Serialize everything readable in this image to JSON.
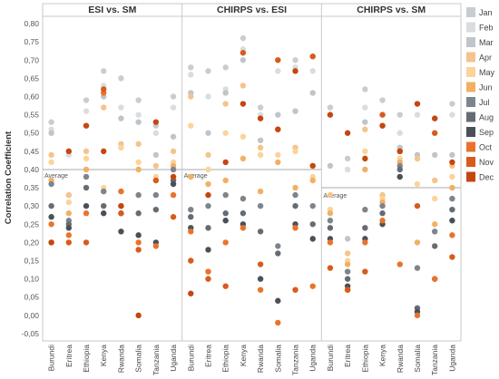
{
  "chart_data": {
    "type": "scatter",
    "ylabel": "Correlation Coefficient",
    "ylim": [
      -0.07,
      0.82
    ],
    "yticks": [
      "0,80",
      "0,75",
      "0,70",
      "0,65",
      "0,60",
      "0,55",
      "0,50",
      "0,45",
      "0,40",
      "0,35",
      "0,30",
      "0,25",
      "0,20",
      "0,15",
      "0,10",
      "0,05",
      "0,00",
      "-0,05"
    ],
    "ytick_values": [
      0.8,
      0.75,
      0.7,
      0.65,
      0.6,
      0.55,
      0.5,
      0.45,
      0.4,
      0.35,
      0.3,
      0.25,
      0.2,
      0.15,
      0.1,
      0.05,
      0.0,
      -0.05
    ],
    "categories": [
      "Burundi",
      "Eritrea",
      "Ethiopia",
      "Kenya",
      "Rwanda",
      "Somalia",
      "Tanzania",
      "Uganda"
    ],
    "average_label": "Average",
    "legend": [
      {
        "name": "Jan",
        "color": "#c8cdd2"
      },
      {
        "name": "Feb",
        "color": "#d9dde0"
      },
      {
        "name": "Mar",
        "color": "#bfc5ca"
      },
      {
        "name": "Apr",
        "color": "#f5c38c"
      },
      {
        "name": "May",
        "color": "#fbd39b"
      },
      {
        "name": "Jun",
        "color": "#f2b063"
      },
      {
        "name": "Jul",
        "color": "#7d858c"
      },
      {
        "name": "Aug",
        "color": "#656c73"
      },
      {
        "name": "Sep",
        "color": "#4a5058"
      },
      {
        "name": "Oct",
        "color": "#e8742c"
      },
      {
        "name": "Nov",
        "color": "#d85b1c"
      },
      {
        "name": "Dec",
        "color": "#c6460f"
      }
    ],
    "panels": [
      {
        "title": "ESI vs. SM",
        "average": 0.4,
        "points": [
          [
            0.53,
            0.51,
            0.5,
            0.44,
            0.42,
            0.37,
            0.36,
            0.3,
            0.27,
            0.25,
            0.2,
            0.2
          ],
          [
            0.45,
            0.44,
            0.33,
            0.33,
            0.31,
            0.28,
            0.26,
            0.25,
            0.24,
            0.22,
            0.2,
            0.45
          ],
          [
            0.59,
            0.56,
            0.52,
            0.45,
            0.43,
            0.4,
            0.38,
            0.35,
            0.3,
            0.28,
            0.2,
            0.52
          ],
          [
            0.67,
            0.63,
            0.6,
            0.57,
            0.35,
            0.34,
            0.34,
            0.3,
            0.28,
            0.61,
            0.62,
            0.45
          ],
          [
            0.65,
            0.57,
            0.54,
            0.47,
            0.46,
            0.34,
            0.3,
            0.28,
            0.23,
            0.34,
            0.28,
            0.3
          ],
          [
            0.59,
            0.55,
            0.53,
            0.47,
            0.42,
            0.4,
            0.33,
            0.28,
            0.22,
            0.2,
            0.18,
            0.0
          ],
          [
            0.52,
            0.5,
            0.44,
            0.41,
            0.38,
            0.37,
            0.33,
            0.29,
            0.2,
            0.19,
            0.37,
            0.53
          ],
          [
            0.6,
            0.57,
            0.49,
            0.45,
            0.42,
            0.41,
            0.4,
            0.37,
            0.36,
            0.33,
            0.27,
            0.38
          ]
        ]
      },
      {
        "title": "CHIRPS vs. ESI",
        "average": 0.4,
        "points": [
          [
            0.68,
            0.66,
            0.61,
            0.6,
            0.52,
            0.38,
            0.29,
            0.27,
            0.24,
            0.23,
            0.15,
            0.06
          ],
          [
            0.67,
            0.6,
            0.5,
            0.44,
            0.4,
            0.36,
            0.3,
            0.24,
            0.18,
            0.12,
            0.1,
            0.33
          ],
          [
            0.68,
            0.62,
            0.61,
            0.58,
            0.5,
            0.37,
            0.33,
            0.28,
            0.26,
            0.2,
            0.08,
            0.42
          ],
          [
            0.76,
            0.73,
            0.7,
            0.63,
            0.49,
            0.43,
            0.32,
            0.28,
            0.25,
            0.24,
            0.72,
            0.58
          ],
          [
            0.57,
            0.55,
            0.48,
            0.46,
            0.44,
            0.34,
            0.3,
            0.23,
            0.1,
            0.07,
            0.14,
            0.54
          ],
          [
            0.7,
            0.67,
            0.55,
            0.51,
            0.44,
            0.42,
            0.19,
            0.17,
            0.04,
            -0.02,
            0.7,
            0.51
          ],
          [
            0.7,
            0.68,
            0.56,
            0.46,
            0.45,
            0.35,
            0.33,
            0.3,
            0.25,
            0.24,
            0.07,
            0.67
          ],
          [
            0.71,
            0.67,
            0.61,
            0.41,
            0.38,
            0.37,
            0.3,
            0.25,
            0.21,
            0.08,
            0.71,
            0.41
          ]
        ]
      },
      {
        "title": "CHIRPS vs. SM",
        "average": 0.35,
        "points": [
          [
            0.57,
            0.55,
            0.41,
            0.33,
            0.29,
            0.28,
            0.26,
            0.24,
            0.21,
            0.2,
            0.13,
            0.55
          ],
          [
            0.43,
            0.4,
            0.21,
            0.17,
            0.15,
            0.14,
            0.12,
            0.1,
            0.08,
            0.07,
            0.07,
            0.5
          ],
          [
            0.62,
            0.57,
            0.53,
            0.51,
            0.45,
            0.4,
            0.29,
            0.24,
            0.21,
            0.2,
            0.12,
            0.43
          ],
          [
            0.59,
            0.55,
            0.52,
            0.33,
            0.32,
            0.31,
            0.3,
            0.28,
            0.25,
            0.26,
            0.55,
            0.52
          ],
          [
            0.55,
            0.5,
            0.46,
            0.45,
            0.43,
            0.42,
            0.41,
            0.4,
            0.38,
            0.14,
            0.45,
            0.45
          ],
          [
            0.58,
            0.55,
            0.44,
            0.43,
            0.36,
            0.2,
            0.13,
            0.02,
            0.01,
            0.0,
            0.3,
            0.58
          ],
          [
            0.54,
            0.5,
            0.44,
            0.37,
            0.32,
            0.25,
            0.23,
            0.19,
            0.1,
            0.1,
            0.5,
            0.54
          ],
          [
            0.58,
            0.55,
            0.44,
            0.41,
            0.38,
            0.35,
            0.32,
            0.29,
            0.26,
            0.22,
            0.16,
            0.42
          ]
        ]
      }
    ]
  }
}
